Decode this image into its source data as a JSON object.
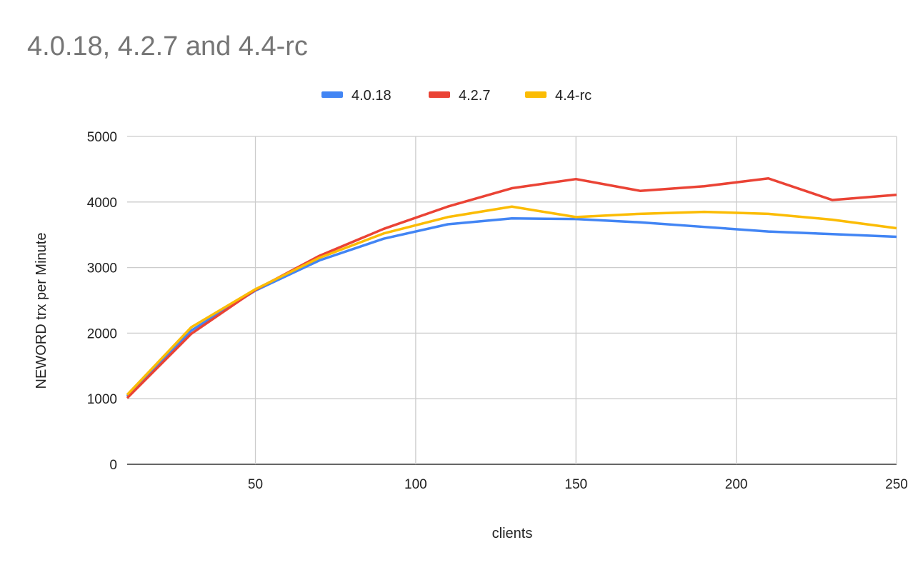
{
  "chart_data": {
    "type": "line",
    "title": "4.0.18, 4.2.7 and 4.4-rc",
    "xlabel": "clients",
    "ylabel": "NEWORD trx per Minute",
    "x": [
      10,
      30,
      50,
      70,
      90,
      110,
      130,
      150,
      170,
      190,
      210,
      230,
      250
    ],
    "xlim": [
      10,
      250
    ],
    "ylim": [
      0,
      5000
    ],
    "xticks": [
      50,
      100,
      150,
      200,
      250
    ],
    "yticks": [
      0,
      1000,
      2000,
      3000,
      4000,
      5000
    ],
    "grid": true,
    "legend_position": "top",
    "series": [
      {
        "name": "4.0.18",
        "color": "#4285f4",
        "values": [
          1040,
          2040,
          2650,
          3110,
          3440,
          3660,
          3750,
          3740,
          3690,
          3620,
          3550,
          3510,
          3470
        ]
      },
      {
        "name": "4.2.7",
        "color": "#ea4335",
        "values": [
          1010,
          1990,
          2660,
          3180,
          3590,
          3930,
          4210,
          4350,
          4170,
          4240,
          4360,
          4030,
          4110
        ]
      },
      {
        "name": "4.4-rc",
        "color": "#fbbc04",
        "values": [
          1060,
          2090,
          2670,
          3150,
          3520,
          3770,
          3930,
          3770,
          3820,
          3850,
          3820,
          3730,
          3600
        ]
      }
    ]
  }
}
